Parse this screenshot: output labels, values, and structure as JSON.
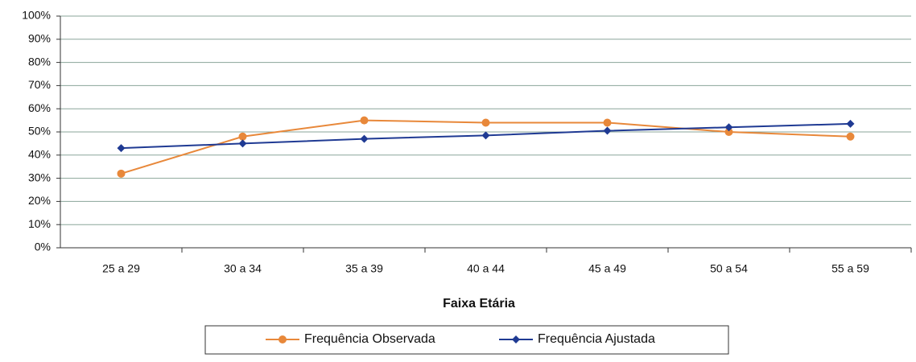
{
  "chart_data": {
    "type": "line",
    "x_label": "Faixa Etária",
    "categories": [
      "25 a 29",
      "30 a 34",
      "35 a 39",
      "40 a 44",
      "45 a 49",
      "50 a 54",
      "55 a 59"
    ],
    "series": [
      {
        "name": "Frequência Observada",
        "color": "#e8883a",
        "values": [
          32,
          48,
          55,
          54,
          54,
          50,
          48
        ]
      },
      {
        "name": "Frequência Ajustada",
        "color": "#1f3a93",
        "values": [
          43,
          45,
          47,
          48.5,
          50.5,
          52,
          53.5
        ]
      }
    ],
    "ylim": [
      0,
      100
    ],
    "yticks": [
      {
        "value": 0,
        "label": "0%"
      },
      {
        "value": 10,
        "label": "10%"
      },
      {
        "value": 20,
        "label": "20%"
      },
      {
        "value": 30,
        "label": "30%"
      },
      {
        "value": 40,
        "label": "40%"
      },
      {
        "value": 50,
        "label": "50%"
      },
      {
        "value": 60,
        "label": "60%"
      },
      {
        "value": 70,
        "label": "70%"
      },
      {
        "value": 80,
        "label": "80%"
      },
      {
        "value": 90,
        "label": "90%"
      },
      {
        "value": 100,
        "label": "100%"
      }
    ],
    "grid": true,
    "legend": "bottom"
  }
}
